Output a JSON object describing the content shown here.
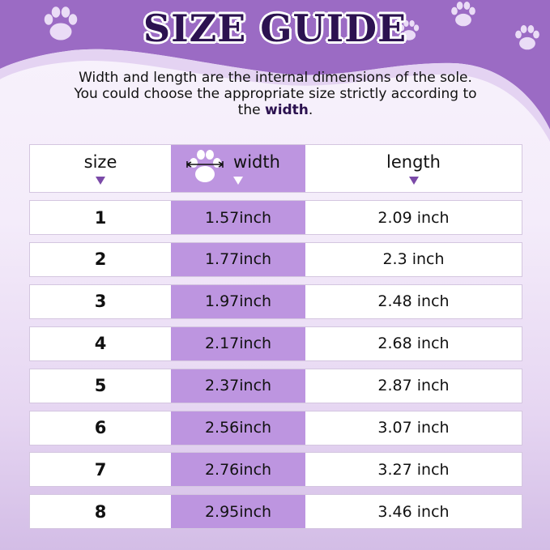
{
  "title": "SIZE GUIDE",
  "description": {
    "text": "Width and length are the internal dimensions of the sole. You could choose the appropriate size strictly according to the",
    "bold": "width",
    "end": "."
  },
  "colors": {
    "header_purple": "#9b6bc4",
    "width_column": "#bd95e0",
    "title_text": "#2c1250"
  },
  "table": {
    "headers": [
      "size",
      "width",
      "length"
    ],
    "header_icons": [
      "paw-width-icon"
    ],
    "rows": [
      {
        "size": "1",
        "width": "1.57inch",
        "length": "2.09 inch"
      },
      {
        "size": "2",
        "width": "1.77inch",
        "length": "2.3 inch"
      },
      {
        "size": "3",
        "width": "1.97inch",
        "length": "2.48 inch"
      },
      {
        "size": "4",
        "width": "2.17inch",
        "length": "2.68 inch"
      },
      {
        "size": "5",
        "width": "2.37inch",
        "length": "2.87 inch"
      },
      {
        "size": "6",
        "width": "2.56inch",
        "length": "3.07 inch"
      },
      {
        "size": "7",
        "width": "2.76inch",
        "length": "3.27 inch"
      },
      {
        "size": "8",
        "width": "2.95inch",
        "length": "3.46 inch"
      }
    ]
  }
}
